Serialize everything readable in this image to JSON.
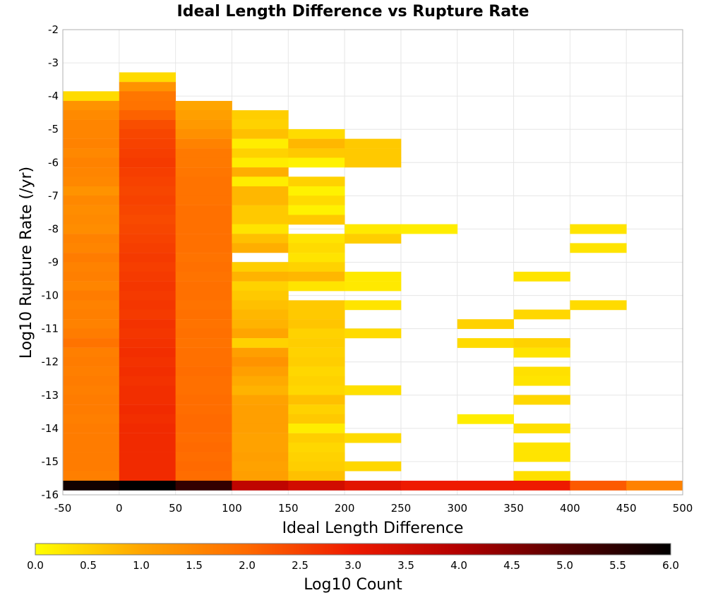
{
  "chart_data": {
    "type": "heatmap",
    "title": "Ideal Length Difference vs Rupture Rate",
    "xlabel": "Ideal Length Difference",
    "ylabel": "Log10 Rupture Rate (/yr)",
    "xlim": [
      -50,
      500
    ],
    "ylim": [
      -16,
      -2
    ],
    "x_ticks": [
      "-50",
      "0",
      "50",
      "100",
      "150",
      "200",
      "250",
      "300",
      "350",
      "400",
      "450",
      "500"
    ],
    "y_ticks": [
      "-2",
      "-3",
      "-4",
      "-5",
      "-6",
      "-7",
      "-8",
      "-9",
      "-10",
      "-11",
      "-12",
      "-13",
      "-14",
      "-15",
      "-16"
    ],
    "x_bin_width": 50,
    "y_bin_height": 0.285,
    "colorbar": {
      "label": "Log10 Count",
      "range": [
        0,
        6
      ],
      "ticks": [
        "0.0",
        "0.5",
        "1.0",
        "1.5",
        "2.0",
        "2.5",
        "3.0",
        "3.5",
        "4.0",
        "4.5",
        "5.0",
        "5.5",
        "6.0"
      ],
      "colors": [
        "#ffff00",
        "#ffa500",
        "#ff6a00",
        "#ee1a00",
        "#b30000",
        "#550000",
        "#000000"
      ]
    },
    "columns": [
      {
        "x_start": -50,
        "cells": [
          {
            "y": -4.14,
            "v": 0.4
          },
          {
            "y": -4.43,
            "v": 1.3
          },
          {
            "y": -4.71,
            "v": 1.45
          },
          {
            "y": -5.0,
            "v": 1.55
          },
          {
            "y": -5.28,
            "v": 1.55
          },
          {
            "y": -5.57,
            "v": 1.6
          },
          {
            "y": -5.86,
            "v": 1.5
          },
          {
            "y": -6.14,
            "v": 1.6
          },
          {
            "y": -6.43,
            "v": 1.55
          },
          {
            "y": -6.71,
            "v": 1.5
          },
          {
            "y": -7.0,
            "v": 1.3
          },
          {
            "y": -7.28,
            "v": 1.5
          },
          {
            "y": -7.57,
            "v": 1.4
          },
          {
            "y": -7.86,
            "v": 1.45
          },
          {
            "y": -8.14,
            "v": 1.4
          },
          {
            "y": -8.43,
            "v": 1.6
          },
          {
            "y": -8.71,
            "v": 1.55
          },
          {
            "y": -9.0,
            "v": 1.7
          },
          {
            "y": -9.28,
            "v": 1.6
          },
          {
            "y": -9.57,
            "v": 1.65
          },
          {
            "y": -9.86,
            "v": 1.55
          },
          {
            "y": -10.14,
            "v": 1.7
          },
          {
            "y": -10.43,
            "v": 1.6
          },
          {
            "y": -10.71,
            "v": 1.65
          },
          {
            "y": -11.0,
            "v": 1.6
          },
          {
            "y": -11.28,
            "v": 1.7
          },
          {
            "y": -11.57,
            "v": 1.85
          },
          {
            "y": -11.86,
            "v": 1.65
          },
          {
            "y": -12.14,
            "v": 1.7
          },
          {
            "y": -12.43,
            "v": 1.65
          },
          {
            "y": -12.71,
            "v": 1.7
          },
          {
            "y": -13.0,
            "v": 1.65
          },
          {
            "y": -13.28,
            "v": 1.7
          },
          {
            "y": -13.57,
            "v": 1.7
          },
          {
            "y": -13.86,
            "v": 1.65
          },
          {
            "y": -14.14,
            "v": 1.7
          },
          {
            "y": -14.43,
            "v": 1.7
          },
          {
            "y": -14.71,
            "v": 1.7
          },
          {
            "y": -15.0,
            "v": 1.7
          },
          {
            "y": -15.28,
            "v": 1.7
          },
          {
            "y": -15.57,
            "v": 1.65
          },
          {
            "y": -15.86,
            "v": 5.8
          }
        ]
      },
      {
        "x_start": 0,
        "cells": [
          {
            "y": -3.57,
            "v": 0.4
          },
          {
            "y": -3.86,
            "v": 1.3
          },
          {
            "y": -4.14,
            "v": 1.8
          },
          {
            "y": -4.43,
            "v": 1.85
          },
          {
            "y": -4.71,
            "v": 2.1
          },
          {
            "y": -5.0,
            "v": 2.35
          },
          {
            "y": -5.28,
            "v": 2.45
          },
          {
            "y": -5.57,
            "v": 2.5
          },
          {
            "y": -5.86,
            "v": 2.55
          },
          {
            "y": -6.14,
            "v": 2.6
          },
          {
            "y": -6.43,
            "v": 2.55
          },
          {
            "y": -6.71,
            "v": 2.5
          },
          {
            "y": -7.0,
            "v": 2.45
          },
          {
            "y": -7.28,
            "v": 2.5
          },
          {
            "y": -7.57,
            "v": 2.45
          },
          {
            "y": -7.86,
            "v": 2.4
          },
          {
            "y": -8.14,
            "v": 2.45
          },
          {
            "y": -8.43,
            "v": 2.5
          },
          {
            "y": -8.71,
            "v": 2.55
          },
          {
            "y": -9.0,
            "v": 2.6
          },
          {
            "y": -9.28,
            "v": 2.55
          },
          {
            "y": -9.57,
            "v": 2.6
          },
          {
            "y": -9.86,
            "v": 2.65
          },
          {
            "y": -10.14,
            "v": 2.6
          },
          {
            "y": -10.43,
            "v": 2.65
          },
          {
            "y": -10.71,
            "v": 2.6
          },
          {
            "y": -11.0,
            "v": 2.7
          },
          {
            "y": -11.28,
            "v": 2.65
          },
          {
            "y": -11.57,
            "v": 2.7
          },
          {
            "y": -11.86,
            "v": 2.75
          },
          {
            "y": -12.14,
            "v": 2.7
          },
          {
            "y": -12.43,
            "v": 2.75
          },
          {
            "y": -12.71,
            "v": 2.7
          },
          {
            "y": -13.0,
            "v": 2.75
          },
          {
            "y": -13.28,
            "v": 2.75
          },
          {
            "y": -13.57,
            "v": 2.8
          },
          {
            "y": -13.86,
            "v": 2.75
          },
          {
            "y": -14.14,
            "v": 2.8
          },
          {
            "y": -14.43,
            "v": 2.8
          },
          {
            "y": -14.71,
            "v": 2.8
          },
          {
            "y": -15.0,
            "v": 2.8
          },
          {
            "y": -15.28,
            "v": 2.8
          },
          {
            "y": -15.57,
            "v": 2.8
          },
          {
            "y": -15.86,
            "v": 6.0
          }
        ]
      },
      {
        "x_start": 50,
        "cells": [
          {
            "y": -4.43,
            "v": 1.0
          },
          {
            "y": -4.71,
            "v": 1.1
          },
          {
            "y": -5.0,
            "v": 1.2
          },
          {
            "y": -5.28,
            "v": 1.35
          },
          {
            "y": -5.57,
            "v": 1.6
          },
          {
            "y": -5.86,
            "v": 1.75
          },
          {
            "y": -6.14,
            "v": 1.75
          },
          {
            "y": -6.43,
            "v": 1.8
          },
          {
            "y": -6.71,
            "v": 1.85
          },
          {
            "y": -7.0,
            "v": 1.85
          },
          {
            "y": -7.28,
            "v": 1.85
          },
          {
            "y": -7.57,
            "v": 1.9
          },
          {
            "y": -7.86,
            "v": 1.9
          },
          {
            "y": -8.14,
            "v": 1.9
          },
          {
            "y": -8.43,
            "v": 1.9
          },
          {
            "y": -8.71,
            "v": 1.9
          },
          {
            "y": -9.0,
            "v": 1.85
          },
          {
            "y": -9.28,
            "v": 1.9
          },
          {
            "y": -9.57,
            "v": 1.85
          },
          {
            "y": -9.86,
            "v": 1.9
          },
          {
            "y": -10.14,
            "v": 1.9
          },
          {
            "y": -10.43,
            "v": 1.85
          },
          {
            "y": -10.71,
            "v": 1.9
          },
          {
            "y": -11.0,
            "v": 1.85
          },
          {
            "y": -11.28,
            "v": 1.9
          },
          {
            "y": -11.57,
            "v": 1.85
          },
          {
            "y": -11.86,
            "v": 1.9
          },
          {
            "y": -12.14,
            "v": 1.9
          },
          {
            "y": -12.43,
            "v": 1.95
          },
          {
            "y": -12.71,
            "v": 1.9
          },
          {
            "y": -13.0,
            "v": 1.9
          },
          {
            "y": -13.28,
            "v": 1.95
          },
          {
            "y": -13.57,
            "v": 1.95
          },
          {
            "y": -13.86,
            "v": 2.0
          },
          {
            "y": -14.14,
            "v": 2.0
          },
          {
            "y": -14.43,
            "v": 1.95
          },
          {
            "y": -14.71,
            "v": 2.0
          },
          {
            "y": -15.0,
            "v": 1.95
          },
          {
            "y": -15.28,
            "v": 2.0
          },
          {
            "y": -15.57,
            "v": 1.95
          },
          {
            "y": -15.86,
            "v": 5.4
          }
        ]
      },
      {
        "x_start": 100,
        "cells": [
          {
            "y": -4.71,
            "v": 0.55
          },
          {
            "y": -5.0,
            "v": 0.5
          },
          {
            "y": -5.28,
            "v": 0.7
          },
          {
            "y": -5.57,
            "v": 0.2
          },
          {
            "y": -5.86,
            "v": 0.5
          },
          {
            "y": -6.14,
            "v": 0.2
          },
          {
            "y": -6.43,
            "v": 0.9
          },
          {
            "y": -6.71,
            "v": 0.2
          },
          {
            "y": -7.0,
            "v": 0.8
          },
          {
            "y": -7.28,
            "v": 0.8
          },
          {
            "y": -7.57,
            "v": 0.6
          },
          {
            "y": -7.86,
            "v": 0.6
          },
          {
            "y": -8.14,
            "v": 0.3
          },
          {
            "y": -8.43,
            "v": 0.7
          },
          {
            "y": -8.71,
            "v": 0.9
          },
          {
            "y": -9.28,
            "v": 0.55
          },
          {
            "y": -9.57,
            "v": 0.85
          },
          {
            "y": -9.86,
            "v": 0.5
          },
          {
            "y": -10.14,
            "v": 0.6
          },
          {
            "y": -10.43,
            "v": 0.7
          },
          {
            "y": -10.71,
            "v": 0.8
          },
          {
            "y": -11.0,
            "v": 0.85
          },
          {
            "y": -11.28,
            "v": 1.0
          },
          {
            "y": -11.57,
            "v": 0.5
          },
          {
            "y": -11.86,
            "v": 1.1
          },
          {
            "y": -12.14,
            "v": 1.3
          },
          {
            "y": -12.43,
            "v": 1.1
          },
          {
            "y": -12.71,
            "v": 0.95
          },
          {
            "y": -13.0,
            "v": 0.85
          },
          {
            "y": -13.28,
            "v": 1.05
          },
          {
            "y": -13.57,
            "v": 1.1
          },
          {
            "y": -13.86,
            "v": 1.1
          },
          {
            "y": -14.14,
            "v": 1.1
          },
          {
            "y": -14.43,
            "v": 1.05
          },
          {
            "y": -14.71,
            "v": 1.05
          },
          {
            "y": -15.0,
            "v": 1.1
          },
          {
            "y": -15.28,
            "v": 1.05
          },
          {
            "y": -15.57,
            "v": 1.1
          },
          {
            "y": -15.86,
            "v": 3.8
          }
        ]
      },
      {
        "x_start": 150,
        "cells": [
          {
            "y": -5.28,
            "v": 0.4
          },
          {
            "y": -5.57,
            "v": 0.8
          },
          {
            "y": -5.86,
            "v": 0.6
          },
          {
            "y": -6.14,
            "v": 0.15
          },
          {
            "y": -6.71,
            "v": 0.5
          },
          {
            "y": -7.0,
            "v": 0.15
          },
          {
            "y": -7.28,
            "v": 0.4
          },
          {
            "y": -7.57,
            "v": 0.15
          },
          {
            "y": -7.86,
            "v": 0.6
          },
          {
            "y": -8.43,
            "v": 0.3
          },
          {
            "y": -8.71,
            "v": 0.4
          },
          {
            "y": -9.0,
            "v": 0.3
          },
          {
            "y": -9.28,
            "v": 0.5
          },
          {
            "y": -9.57,
            "v": 0.8
          },
          {
            "y": -9.86,
            "v": 0.3
          },
          {
            "y": -10.43,
            "v": 0.6
          },
          {
            "y": -10.71,
            "v": 0.6
          },
          {
            "y": -11.0,
            "v": 0.65
          },
          {
            "y": -11.28,
            "v": 0.5
          },
          {
            "y": -11.57,
            "v": 0.55
          },
          {
            "y": -11.86,
            "v": 0.5
          },
          {
            "y": -12.14,
            "v": 0.55
          },
          {
            "y": -12.43,
            "v": 0.45
          },
          {
            "y": -12.71,
            "v": 0.5
          },
          {
            "y": -13.0,
            "v": 0.45
          },
          {
            "y": -13.28,
            "v": 0.7
          },
          {
            "y": -13.57,
            "v": 0.5
          },
          {
            "y": -13.86,
            "v": 0.6
          },
          {
            "y": -14.14,
            "v": 0.2
          },
          {
            "y": -14.43,
            "v": 0.55
          },
          {
            "y": -14.71,
            "v": 0.45
          },
          {
            "y": -15.0,
            "v": 0.5
          },
          {
            "y": -15.28,
            "v": 0.55
          },
          {
            "y": -15.57,
            "v": 0.7
          },
          {
            "y": -15.86,
            "v": 3.5
          }
        ]
      },
      {
        "x_start": 200,
        "cells": [
          {
            "y": -5.57,
            "v": 0.6
          },
          {
            "y": -5.86,
            "v": 0.6
          },
          {
            "y": -6.14,
            "v": 0.6
          },
          {
            "y": -8.14,
            "v": 0.25
          },
          {
            "y": -8.43,
            "v": 0.55
          },
          {
            "y": -9.57,
            "v": 0.25
          },
          {
            "y": -9.86,
            "v": 0.25
          },
          {
            "y": -10.43,
            "v": 0.3
          },
          {
            "y": -11.28,
            "v": 0.4
          },
          {
            "y": -12.99,
            "v": 0.35
          },
          {
            "y": -14.43,
            "v": 0.4
          },
          {
            "y": -15.28,
            "v": 0.45
          },
          {
            "y": -15.86,
            "v": 3.2
          }
        ]
      },
      {
        "x_start": 250,
        "cells": [
          {
            "y": -8.14,
            "v": 0.2
          },
          {
            "y": -15.86,
            "v": 3.0
          }
        ]
      },
      {
        "x_start": 300,
        "cells": [
          {
            "y": -11.0,
            "v": 0.5
          },
          {
            "y": -11.57,
            "v": 0.4
          },
          {
            "y": -13.86,
            "v": 0.2
          },
          {
            "y": -15.86,
            "v": 3.0
          }
        ]
      },
      {
        "x_start": 350,
        "cells": [
          {
            "y": -9.57,
            "v": 0.3
          },
          {
            "y": -10.71,
            "v": 0.45
          },
          {
            "y": -11.57,
            "v": 0.5
          },
          {
            "y": -11.86,
            "v": 0.3
          },
          {
            "y": -12.43,
            "v": 0.35
          },
          {
            "y": -12.71,
            "v": 0.3
          },
          {
            "y": -13.28,
            "v": 0.45
          },
          {
            "y": -14.14,
            "v": 0.35
          },
          {
            "y": -14.71,
            "v": 0.3
          },
          {
            "y": -15.0,
            "v": 0.3
          },
          {
            "y": -15.57,
            "v": 0.35
          },
          {
            "y": -15.86,
            "v": 3.0
          }
        ]
      },
      {
        "x_start": 400,
        "cells": [
          {
            "y": -8.14,
            "v": 0.3
          },
          {
            "y": -8.71,
            "v": 0.3
          },
          {
            "y": -10.43,
            "v": 0.4
          },
          {
            "y": -15.86,
            "v": 2.2
          }
        ]
      },
      {
        "x_start": 450,
        "cells": [
          {
            "y": -15.86,
            "v": 1.6
          }
        ]
      }
    ]
  }
}
